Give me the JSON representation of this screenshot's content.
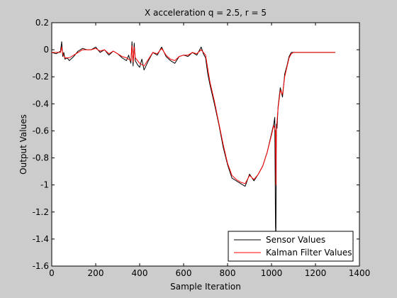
{
  "chart_data": {
    "type": "line",
    "title": "X acceleration q = 2.5, r = 5",
    "xlabel": "Sample Iteration",
    "ylabel": "Output Values",
    "xlim": [
      0,
      1400
    ],
    "ylim": [
      -1.6,
      0.2
    ],
    "xticks": [
      0,
      200,
      400,
      600,
      800,
      1000,
      1200,
      1400
    ],
    "yticks": [
      -1.6,
      -1.4,
      -1.2,
      -1.0,
      -0.8,
      -0.6,
      -0.4,
      -0.2,
      0,
      0.2
    ],
    "xtick_labels": [
      "0",
      "200",
      "400",
      "600",
      "800",
      "1000",
      "1200",
      "1400"
    ],
    "ytick_labels": [
      "-1.6",
      "-1.4",
      "-1.2",
      "-1",
      "-0.8",
      "-0.6",
      "-0.4",
      "-0.2",
      "0",
      "0.2"
    ],
    "grid": false,
    "legend_position": "bottom-right",
    "series": [
      {
        "name": "Sensor Values",
        "color": "#000000",
        "x": [
          0,
          20,
          40,
          45,
          50,
          55,
          60,
          70,
          80,
          100,
          120,
          140,
          160,
          180,
          200,
          220,
          240,
          260,
          280,
          300,
          320,
          340,
          350,
          360,
          365,
          370,
          375,
          380,
          390,
          400,
          410,
          420,
          440,
          460,
          480,
          500,
          520,
          540,
          560,
          580,
          600,
          620,
          640,
          660,
          680,
          690,
          700,
          710,
          720,
          740,
          760,
          780,
          800,
          820,
          840,
          860,
          880,
          900,
          920,
          940,
          960,
          980,
          1000,
          1010,
          1015,
          1018,
          1020,
          1022,
          1025,
          1030,
          1040,
          1050,
          1060,
          1070,
          1080,
          1090,
          1100,
          1120,
          1140,
          1160,
          1180,
          1200,
          1220,
          1240,
          1260,
          1290
        ],
        "y": [
          -0.02,
          -0.03,
          -0.01,
          0.06,
          -0.05,
          -0.02,
          -0.07,
          -0.06,
          -0.08,
          -0.05,
          -0.01,
          0.01,
          0.0,
          0.0,
          0.02,
          -0.02,
          0.0,
          -0.04,
          -0.01,
          -0.03,
          -0.06,
          -0.08,
          -0.04,
          -0.1,
          0.06,
          -0.12,
          0.05,
          -0.08,
          -0.11,
          -0.13,
          -0.07,
          -0.15,
          -0.08,
          -0.02,
          -0.04,
          0.02,
          -0.05,
          -0.08,
          -0.1,
          -0.05,
          -0.04,
          -0.05,
          -0.02,
          -0.04,
          0.02,
          -0.03,
          -0.06,
          -0.18,
          -0.26,
          -0.4,
          -0.55,
          -0.72,
          -0.85,
          -0.95,
          -0.97,
          -0.99,
          -1.01,
          -0.92,
          -0.97,
          -0.92,
          -0.86,
          -0.76,
          -0.62,
          -0.55,
          -0.5,
          -1.3,
          -1.4,
          -0.55,
          -0.58,
          -0.42,
          -0.28,
          -0.35,
          -0.18,
          -0.12,
          -0.05,
          -0.02,
          -0.02,
          -0.02,
          -0.02,
          -0.02,
          -0.02,
          -0.02,
          -0.02,
          -0.02,
          -0.02,
          -0.02
        ]
      },
      {
        "name": "Kalman Filter Values",
        "color": "#ff0000",
        "x": [
          0,
          20,
          40,
          45,
          50,
          60,
          80,
          100,
          120,
          140,
          160,
          180,
          200,
          220,
          240,
          260,
          280,
          300,
          320,
          340,
          360,
          365,
          370,
          375,
          380,
          400,
          420,
          440,
          460,
          480,
          500,
          520,
          540,
          560,
          580,
          600,
          620,
          640,
          660,
          680,
          700,
          710,
          720,
          740,
          760,
          780,
          800,
          820,
          840,
          860,
          880,
          900,
          920,
          940,
          960,
          980,
          1000,
          1010,
          1018,
          1020,
          1022,
          1030,
          1040,
          1050,
          1060,
          1070,
          1080,
          1090,
          1100,
          1120,
          1140,
          1160,
          1180,
          1200,
          1220,
          1240,
          1260,
          1290
        ],
        "y": [
          -0.02,
          -0.02,
          -0.02,
          0.02,
          -0.03,
          -0.06,
          -0.06,
          -0.04,
          -0.02,
          0.0,
          0.0,
          0.0,
          0.01,
          -0.01,
          0.0,
          -0.03,
          -0.01,
          -0.03,
          -0.05,
          -0.06,
          -0.08,
          0.03,
          -0.09,
          0.02,
          -0.06,
          -0.1,
          -0.12,
          -0.07,
          -0.02,
          -0.03,
          0.01,
          -0.04,
          -0.07,
          -0.08,
          -0.05,
          -0.04,
          -0.04,
          -0.02,
          -0.03,
          0.0,
          -0.04,
          -0.14,
          -0.24,
          -0.38,
          -0.54,
          -0.7,
          -0.84,
          -0.93,
          -0.96,
          -0.98,
          -0.99,
          -0.93,
          -0.96,
          -0.92,
          -0.86,
          -0.76,
          -0.63,
          -0.56,
          -0.6,
          -1.0,
          -0.6,
          -0.43,
          -0.3,
          -0.33,
          -0.2,
          -0.13,
          -0.06,
          -0.03,
          -0.02,
          -0.02,
          -0.02,
          -0.02,
          -0.02,
          -0.02,
          -0.02,
          -0.02,
          -0.02,
          -0.02
        ]
      }
    ]
  }
}
